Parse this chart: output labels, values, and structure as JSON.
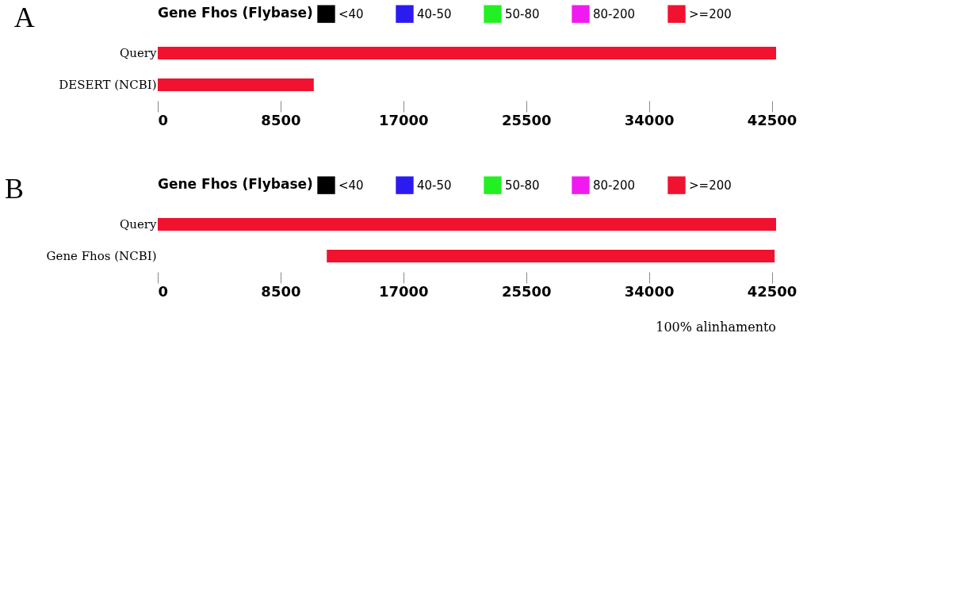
{
  "chart_data": [
    {
      "type": "bar",
      "title": "A",
      "orientation": "horizontal",
      "categories": [
        "Query",
        "DESERT (NCBI)"
      ],
      "legend_title": "Gene Fhos (Flybase)",
      "legend": "top",
      "series": [
        {
          "name": "<40",
          "color": "#000000",
          "values": [
            null,
            null
          ]
        },
        {
          "name": "40-50",
          "color": "#2b1bf0",
          "values": [
            null,
            null
          ]
        },
        {
          "name": "50-80",
          "color": "#22f022",
          "values": [
            null,
            null
          ]
        },
        {
          "name": "80-200",
          "color": "#f01af0",
          "values": [
            null,
            null
          ]
        },
        {
          "name": ">=200",
          "color": "#f0122e",
          "values": [
            42800,
            10800
          ],
          "base": [
            0,
            0
          ]
        }
      ],
      "xlim": [
        0,
        42800
      ],
      "xticks": [
        0,
        8500,
        17000,
        25500,
        34000,
        42500
      ],
      "grid": false
    },
    {
      "type": "bar",
      "title": "B",
      "orientation": "horizontal",
      "categories": [
        "Query",
        "Gene Fhos (NCBI)"
      ],
      "legend_title": "Gene Fhos (Flybase)",
      "legend": "top",
      "series": [
        {
          "name": "<40",
          "color": "#000000",
          "values": [
            null,
            null
          ]
        },
        {
          "name": "40-50",
          "color": "#2b1bf0",
          "values": [
            null,
            null
          ]
        },
        {
          "name": "50-80",
          "color": "#22f022",
          "values": [
            null,
            null
          ]
        },
        {
          "name": "80-200",
          "color": "#f01af0",
          "values": [
            null,
            null
          ]
        },
        {
          "name": ">=200",
          "color": "#f0122e",
          "values": [
            42800,
            31000
          ],
          "base": [
            0,
            11700
          ]
        }
      ],
      "xlim": [
        0,
        42800
      ],
      "xticks": [
        0,
        8500,
        17000,
        25500,
        34000,
        42500
      ],
      "grid": false,
      "annotations": [
        "100% alinhamento"
      ]
    }
  ]
}
